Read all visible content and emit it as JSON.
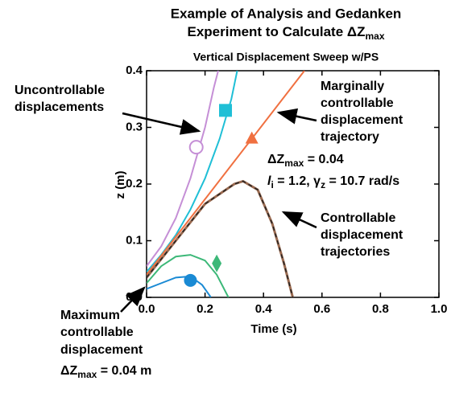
{
  "chart_data": {
    "type": "line",
    "title": [
      "Example of Analysis and Gedanken",
      {
        "main": "Experiment to Calculate ΔZ",
        "sub": "max"
      }
    ],
    "subtitle": "Vertical Displacement Sweep w/PS",
    "x_label": "Time (s)",
    "y_label": "z (m)",
    "xlim": [
      0,
      1
    ],
    "ylim": [
      0,
      0.4
    ],
    "xticks": [
      {
        "value": 0,
        "label": "0.0"
      },
      0.2,
      0.4,
      0.6,
      0.8,
      {
        "value": 1,
        "label": "1.0"
      }
    ],
    "yticks": [
      {
        "value": 0,
        "label": "0.0"
      },
      0.1,
      0.2,
      0.3,
      0.4
    ],
    "series": [
      {
        "color": "#c58fd6",
        "x": [
          0,
          0.05,
          0.1,
          0.15,
          0.2,
          0.23,
          0.245
        ],
        "values": [
          0.055,
          0.09,
          0.14,
          0.21,
          0.3,
          0.37,
          0.4
        ],
        "marker": {
          "x": 0.17,
          "y": 0.265,
          "shape": "circle-open"
        }
      },
      {
        "color": "#1fbfd6",
        "x": [
          0,
          0.05,
          0.1,
          0.15,
          0.2,
          0.25,
          0.29,
          0.31
        ],
        "values": [
          0.045,
          0.075,
          0.11,
          0.155,
          0.21,
          0.28,
          0.35,
          0.4
        ],
        "marker": {
          "x": 0.27,
          "y": 0.33,
          "shape": "square"
        }
      },
      {
        "color": "#f07040",
        "x": [
          0,
          0.54
        ],
        "values": [
          0.04,
          0.4
        ],
        "marker": {
          "x": 0.36,
          "y": 0.28,
          "shape": "triangle"
        }
      },
      {
        "color": "#9a6a50",
        "dash": true,
        "x": [
          0,
          0.1,
          0.2,
          0.3,
          0.33,
          0.38,
          0.43,
          0.47,
          0.5
        ],
        "values": [
          0.035,
          0.1,
          0.165,
          0.2,
          0.205,
          0.19,
          0.13,
          0.06,
          0
        ]
      },
      {
        "color": "#3cb878",
        "x": [
          0,
          0.05,
          0.1,
          0.15,
          0.2,
          0.24,
          0.28
        ],
        "values": [
          0.025,
          0.055,
          0.072,
          0.075,
          0.065,
          0.04,
          0
        ],
        "marker": {
          "x": 0.24,
          "y": 0.06,
          "shape": "diamond"
        }
      },
      {
        "color": "#1a8ad4",
        "x": [
          0,
          0.05,
          0.1,
          0.15,
          0.19,
          0.22
        ],
        "values": [
          0.015,
          0.025,
          0.035,
          0.037,
          0.022,
          0
        ],
        "marker": {
          "x": 0.15,
          "y": 0.03,
          "shape": "circle"
        }
      }
    ],
    "annotations": {
      "uncontrollable": [
        "Uncontrollable",
        "displacements"
      ],
      "marginal": [
        "Marginally",
        "controllable",
        "displacement",
        "trajectory"
      ],
      "dz": {
        "main": "ΔZ",
        "sub": "max",
        "rest": " = 0.04"
      },
      "params": {
        "l": "l",
        "l_sub": "i",
        "mid": " = 1.2, γ",
        "g_sub": "z",
        "rest": " = 10.7 rad/s"
      },
      "controllable": [
        "Controllable",
        "displacement",
        "trajectories"
      ],
      "maximum": [
        "Maximum",
        "controllable",
        "displacement"
      ],
      "maximum_dz": {
        "main": "ΔZ",
        "sub": "max",
        "rest": " = 0.04 m"
      }
    }
  }
}
